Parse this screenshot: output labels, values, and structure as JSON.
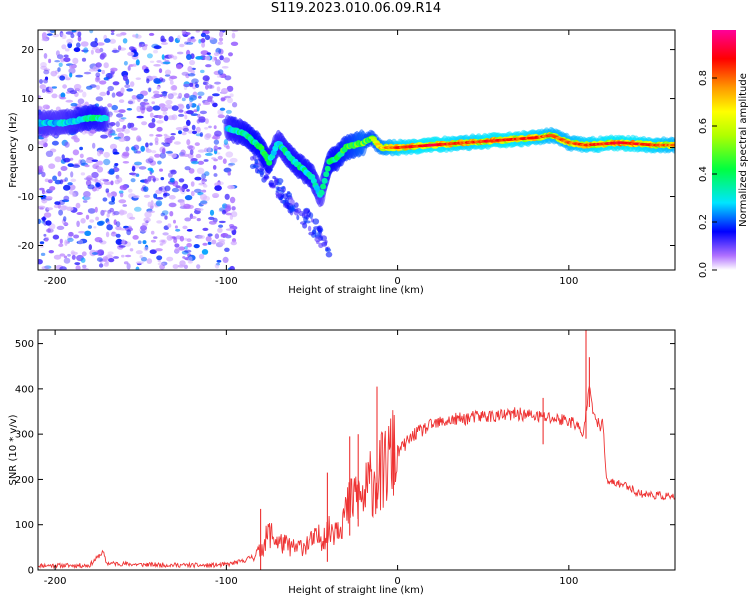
{
  "title": "S119.2023.010.06.09.R14",
  "chart_data": [
    {
      "type": "heatmap",
      "title": "",
      "xlabel": "Height of straight line (km)",
      "ylabel": "Frequency (Hz)",
      "xlim": [
        -210,
        162
      ],
      "ylim": [
        -25,
        24
      ],
      "xticks": [
        -200,
        -100,
        0,
        100
      ],
      "yticks": [
        -20,
        -10,
        0,
        10,
        20
      ],
      "colorbar": {
        "label": "Normalized spectral amplitude",
        "range": [
          0,
          1
        ],
        "ticks": [
          0.0,
          0.2,
          0.4,
          0.6,
          0.8
        ]
      },
      "ridge": {
        "x": [
          -195,
          -180,
          -170,
          -100,
          -90,
          -80,
          -75,
          -70,
          -60,
          -50,
          -45,
          -40,
          -35,
          -30,
          -20,
          -15,
          -10,
          0,
          20,
          40,
          60,
          80,
          90,
          100,
          110,
          130,
          150,
          162
        ],
        "y": [
          5,
          6,
          6,
          4,
          3,
          0,
          -3,
          1,
          -3,
          -6,
          -10,
          -3,
          -2,
          0,
          1,
          2,
          0,
          0,
          0.5,
          1,
          1.5,
          2,
          2.5,
          1,
          0.5,
          1,
          0.5,
          0.5
        ],
        "amplitude": [
          0.4,
          0.5,
          0.45,
          0.45,
          0.5,
          0.55,
          0.5,
          0.45,
          0.5,
          0.5,
          0.4,
          0.55,
          0.55,
          0.6,
          0.7,
          0.65,
          0.75,
          0.9,
          0.95,
          0.9,
          0.95,
          0.9,
          0.85,
          0.85,
          0.9,
          0.95,
          0.9,
          0.85
        ]
      }
    },
    {
      "type": "line",
      "title": "",
      "xlabel": "Height of straight line (km)",
      "ylabel": "SNR (10 * v/v)",
      "xlim": [
        -210,
        162
      ],
      "ylim": [
        0,
        530
      ],
      "xticks": [
        -200,
        -100,
        0,
        100
      ],
      "yticks": [
        0,
        100,
        200,
        300,
        400,
        500
      ],
      "series": [
        {
          "color": "#ee3333",
          "x": [
            -210,
            -180,
            -172,
            -170,
            -150,
            -110,
            -100,
            -90,
            -80,
            -75,
            -70,
            -60,
            -50,
            -40,
            -30,
            -25,
            -20,
            -15,
            -10,
            -5,
            0,
            10,
            20,
            30,
            40,
            50,
            60,
            70,
            80,
            90,
            100,
            105,
            108,
            110,
            112,
            115,
            118,
            120,
            122,
            130,
            135,
            140,
            150,
            162
          ],
          "y": [
            10,
            10,
            40,
            15,
            12,
            10,
            12,
            20,
            40,
            80,
            60,
            45,
            60,
            80,
            120,
            160,
            150,
            190,
            200,
            230,
            260,
            300,
            320,
            330,
            335,
            340,
            340,
            345,
            340,
            335,
            330,
            320,
            290,
            350,
            420,
            330,
            320,
            320,
            195,
            190,
            185,
            170,
            165,
            162
          ],
          "spikes": [
            {
              "x": -80,
              "y": 135
            },
            {
              "x": -41,
              "y": 215
            },
            {
              "x": -28,
              "y": 295
            },
            {
              "x": -23,
              "y": 300
            },
            {
              "x": -12,
              "y": 405
            },
            {
              "x": -2,
              "y": 260
            },
            {
              "x": 85,
              "y": 380
            },
            {
              "x": 110,
              "y": 535
            },
            {
              "x": 112,
              "y": 470
            }
          ]
        }
      ]
    }
  ]
}
